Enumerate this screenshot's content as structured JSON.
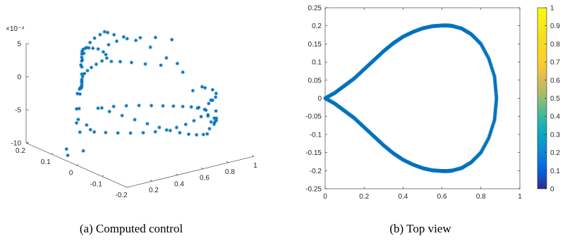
{
  "captions": {
    "left": "(a) Computed control",
    "right": "(b) Top view"
  },
  "colors": {
    "marker": "#0072BD",
    "axis": "#262626"
  },
  "chart_data": [
    {
      "type": "scatter3d",
      "marker": "asterisk",
      "exponent_label": "×10⁻⁴",
      "x_ticks": [
        "0.2",
        "0.4",
        "0.6",
        "0.8",
        "1"
      ],
      "y_ticks": [
        "0.2",
        "0.1",
        "0",
        "-0.1",
        "-0.2"
      ],
      "z_ticks": [
        "5",
        "0",
        "-5",
        "-10"
      ],
      "xlim": [
        0,
        1
      ],
      "ylim": [
        -0.2,
        0.2
      ],
      "zlim": [
        -10,
        5
      ],
      "z_unit_scale": 0.0001,
      "grid": false
    },
    {
      "type": "scatter",
      "marker": "asterisk",
      "x_ticks": [
        "0",
        "0.2",
        "0.4",
        "0.6",
        "0.8",
        "1"
      ],
      "y_ticks": [
        "0.25",
        "0.2",
        "0.15",
        "0.1",
        "0.05",
        "0",
        "-0.05",
        "-0.1",
        "-0.15",
        "-0.2",
        "-0.25"
      ],
      "xlim": [
        0,
        1
      ],
      "ylim": [
        -0.25,
        0.25
      ],
      "curve": {
        "description": "closed teardrop curve",
        "x": [
          0,
          0.05,
          0.1,
          0.15,
          0.2,
          0.25,
          0.3,
          0.35,
          0.4,
          0.45,
          0.5,
          0.55,
          0.6,
          0.63,
          0.65,
          0.7,
          0.75,
          0.8,
          0.84,
          0.87,
          0.88
        ],
        "y_upper": [
          0,
          0.015,
          0.035,
          0.055,
          0.08,
          0.105,
          0.13,
          0.152,
          0.17,
          0.183,
          0.193,
          0.199,
          0.201,
          0.201,
          0.2,
          0.193,
          0.177,
          0.15,
          0.11,
          0.06,
          0
        ]
      },
      "colorbar": {
        "ticks": [
          "1",
          "0.9",
          "0.8",
          "0.7",
          "0.6",
          "0.5",
          "0.4",
          "0.3",
          "0.2",
          "0.1",
          "0"
        ],
        "range": [
          0,
          1
        ],
        "colormap": "parula"
      },
      "grid": false
    }
  ]
}
